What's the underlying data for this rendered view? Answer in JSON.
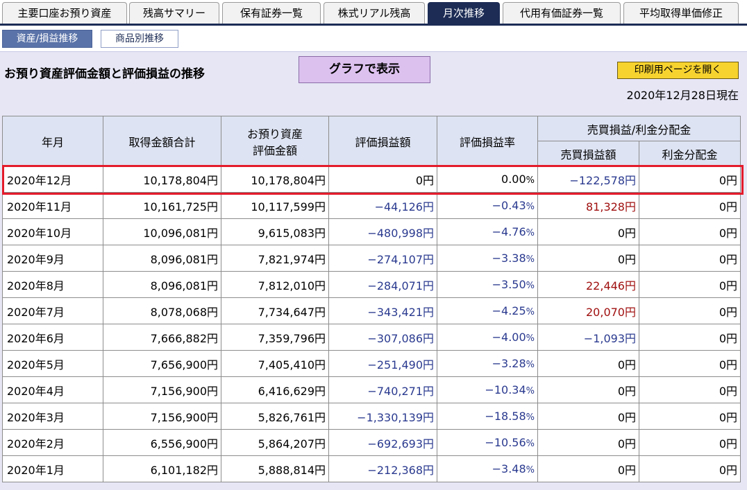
{
  "tabs": [
    "主要口座お預り資産",
    "残高サマリー",
    "保有証券一覧",
    "株式リアル残高",
    "月次推移",
    "代用有価証券一覧",
    "平均取得単価修正"
  ],
  "subtabs": [
    "資産/損益推移",
    "商品別推移"
  ],
  "title": "お預り資産評価金額と評価損益の推移",
  "graph_button": "グラフで表示",
  "print_button": "印刷用ページを開く",
  "as_of": "2020年12月28日現在",
  "headers": {
    "month": "年月",
    "acq": "取得金額合計",
    "eval_line1": "お預り資産",
    "eval_line2": "評価金額",
    "pl": "評価損益額",
    "rate": "評価損益率",
    "group": "売買損益/利金分配金",
    "trade": "売買損益額",
    "div": "利金分配金"
  },
  "rows": [
    {
      "month": "2020年12月",
      "acq": "10,178,804円",
      "eval": "10,178,804円",
      "pl": "0円",
      "pl_neg": false,
      "rate": "0.00",
      "rate_neg": false,
      "trade": "−122,578円",
      "trade_type": "neg",
      "div": "0円"
    },
    {
      "month": "2020年11月",
      "acq": "10,161,725円",
      "eval": "10,117,599円",
      "pl": "−44,126円",
      "pl_neg": true,
      "rate": "−0.43",
      "rate_neg": true,
      "trade": "81,328円",
      "trade_type": "pos",
      "div": "0円"
    },
    {
      "month": "2020年10月",
      "acq": "10,096,081円",
      "eval": "9,615,083円",
      "pl": "−480,998円",
      "pl_neg": true,
      "rate": "−4.76",
      "rate_neg": true,
      "trade": "0円",
      "trade_type": "zero",
      "div": "0円"
    },
    {
      "month": "2020年9月",
      "acq": "8,096,081円",
      "eval": "7,821,974円",
      "pl": "−274,107円",
      "pl_neg": true,
      "rate": "−3.38",
      "rate_neg": true,
      "trade": "0円",
      "trade_type": "zero",
      "div": "0円"
    },
    {
      "month": "2020年8月",
      "acq": "8,096,081円",
      "eval": "7,812,010円",
      "pl": "−284,071円",
      "pl_neg": true,
      "rate": "−3.50",
      "rate_neg": true,
      "trade": "22,446円",
      "trade_type": "pos",
      "div": "0円"
    },
    {
      "month": "2020年7月",
      "acq": "8,078,068円",
      "eval": "7,734,647円",
      "pl": "−343,421円",
      "pl_neg": true,
      "rate": "−4.25",
      "rate_neg": true,
      "trade": "20,070円",
      "trade_type": "pos",
      "div": "0円"
    },
    {
      "month": "2020年6月",
      "acq": "7,666,882円",
      "eval": "7,359,796円",
      "pl": "−307,086円",
      "pl_neg": true,
      "rate": "−4.00",
      "rate_neg": true,
      "trade": "−1,093円",
      "trade_type": "neg",
      "div": "0円"
    },
    {
      "month": "2020年5月",
      "acq": "7,656,900円",
      "eval": "7,405,410円",
      "pl": "−251,490円",
      "pl_neg": true,
      "rate": "−3.28",
      "rate_neg": true,
      "trade": "0円",
      "trade_type": "zero",
      "div": "0円"
    },
    {
      "month": "2020年4月",
      "acq": "7,156,900円",
      "eval": "6,416,629円",
      "pl": "−740,271円",
      "pl_neg": true,
      "rate": "−10.34",
      "rate_neg": true,
      "trade": "0円",
      "trade_type": "zero",
      "div": "0円"
    },
    {
      "month": "2020年3月",
      "acq": "7,156,900円",
      "eval": "5,826,761円",
      "pl": "−1,330,139円",
      "pl_neg": true,
      "rate": "−18.58",
      "rate_neg": true,
      "trade": "0円",
      "trade_type": "zero",
      "div": "0円"
    },
    {
      "month": "2020年2月",
      "acq": "6,556,900円",
      "eval": "5,864,207円",
      "pl": "−692,693円",
      "pl_neg": true,
      "rate": "−10.56",
      "rate_neg": true,
      "trade": "0円",
      "trade_type": "zero",
      "div": "0円"
    },
    {
      "month": "2020年1月",
      "acq": "6,101,182円",
      "eval": "5,888,814円",
      "pl": "−212,368円",
      "pl_neg": true,
      "rate": "−3.48",
      "rate_neg": true,
      "trade": "0円",
      "trade_type": "zero",
      "div": "0円"
    }
  ],
  "percent_sign": "%",
  "colors": {
    "navy": "#1c2c55",
    "negative": "#2a3a8f",
    "positive": "#a01010",
    "highlight": "#e41b2b"
  }
}
